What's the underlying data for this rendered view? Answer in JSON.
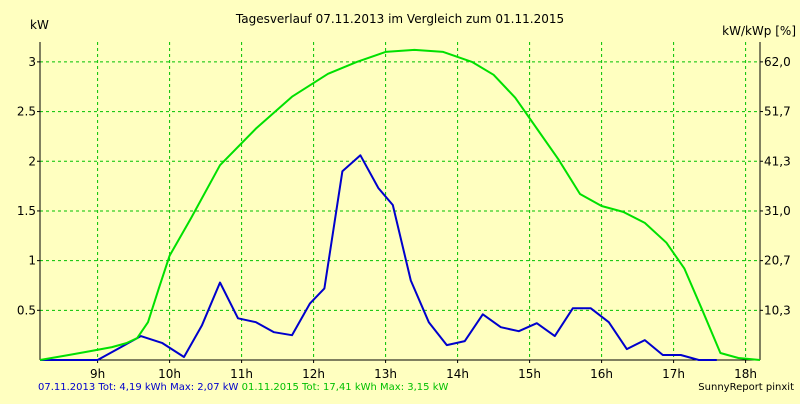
{
  "chart_data": {
    "type": "line",
    "title": "Tagesverlauf 07.11.2013 im Vergleich zum 01.11.2015",
    "ylabel_left": "kW",
    "ylabel_right": "kW/kWp [%]",
    "x_ticks": [
      "9h",
      "10h",
      "11h",
      "12h",
      "13h",
      "14h",
      "15h",
      "16h",
      "17h",
      "18h"
    ],
    "x_tick_values": [
      9,
      10,
      11,
      12,
      13,
      14,
      15,
      16,
      17,
      18
    ],
    "xlim": [
      8.2,
      18.2
    ],
    "ylim": [
      0,
      3.2
    ],
    "y_ticks": [
      0.5,
      1,
      1.5,
      2,
      2.5,
      3
    ],
    "y_tick_labels": [
      "0.5",
      "1",
      "1.5",
      "2",
      "2.5",
      "3"
    ],
    "y_right_ticks": [
      "10,3",
      "20,7",
      "31,0",
      "41,3",
      "51,7",
      "62,0"
    ],
    "grid": true,
    "series": [
      {
        "name": "07.11.2013",
        "color": "#0000cc",
        "points": [
          [
            8.2,
            0.0
          ],
          [
            8.9,
            0.0
          ],
          [
            9.0,
            0.0
          ],
          [
            9.3,
            0.12
          ],
          [
            9.6,
            0.24
          ],
          [
            9.9,
            0.17
          ],
          [
            10.2,
            0.03
          ],
          [
            10.45,
            0.35
          ],
          [
            10.7,
            0.78
          ],
          [
            10.95,
            0.42
          ],
          [
            11.2,
            0.38
          ],
          [
            11.45,
            0.28
          ],
          [
            11.7,
            0.25
          ],
          [
            11.95,
            0.57
          ],
          [
            12.15,
            0.72
          ],
          [
            12.4,
            1.9
          ],
          [
            12.65,
            2.06
          ],
          [
            12.9,
            1.73
          ],
          [
            13.1,
            1.56
          ],
          [
            13.35,
            0.8
          ],
          [
            13.6,
            0.38
          ],
          [
            13.85,
            0.15
          ],
          [
            14.1,
            0.19
          ],
          [
            14.35,
            0.46
          ],
          [
            14.6,
            0.33
          ],
          [
            14.85,
            0.29
          ],
          [
            15.1,
            0.37
          ],
          [
            15.35,
            0.24
          ],
          [
            15.6,
            0.52
          ],
          [
            15.85,
            0.52
          ],
          [
            16.1,
            0.38
          ],
          [
            16.35,
            0.11
          ],
          [
            16.6,
            0.2
          ],
          [
            16.85,
            0.05
          ],
          [
            17.1,
            0.05
          ],
          [
            17.35,
            0.0
          ],
          [
            17.6,
            0.0
          ]
        ]
      },
      {
        "name": "01.11.2015",
        "color": "#00e000",
        "points": [
          [
            8.2,
            0.0
          ],
          [
            8.6,
            0.05
          ],
          [
            8.9,
            0.09
          ],
          [
            9.2,
            0.13
          ],
          [
            9.4,
            0.17
          ],
          [
            9.55,
            0.22
          ],
          [
            9.7,
            0.38
          ],
          [
            9.85,
            0.72
          ],
          [
            10.0,
            1.05
          ],
          [
            10.3,
            1.43
          ],
          [
            10.7,
            1.96
          ],
          [
            11.2,
            2.33
          ],
          [
            11.7,
            2.65
          ],
          [
            12.2,
            2.88
          ],
          [
            12.6,
            3.0
          ],
          [
            13.0,
            3.1
          ],
          [
            13.4,
            3.12
          ],
          [
            13.8,
            3.1
          ],
          [
            14.2,
            3.0
          ],
          [
            14.5,
            2.87
          ],
          [
            14.8,
            2.64
          ],
          [
            15.1,
            2.33
          ],
          [
            15.4,
            2.02
          ],
          [
            15.7,
            1.67
          ],
          [
            16.0,
            1.55
          ],
          [
            16.3,
            1.49
          ],
          [
            16.6,
            1.38
          ],
          [
            16.9,
            1.18
          ],
          [
            17.15,
            0.92
          ],
          [
            17.4,
            0.5
          ],
          [
            17.65,
            0.07
          ],
          [
            17.9,
            0.02
          ],
          [
            18.2,
            0.0
          ]
        ]
      }
    ]
  },
  "footer": {
    "series1_text": "07.11.2013 Tot: 4,19 kWh Max: 2,07 kW",
    "series2_text": "01.11.2015 Tot: 17,41 kWh Max: 3,15 kW",
    "credit": "SunnyReport pinxit"
  }
}
